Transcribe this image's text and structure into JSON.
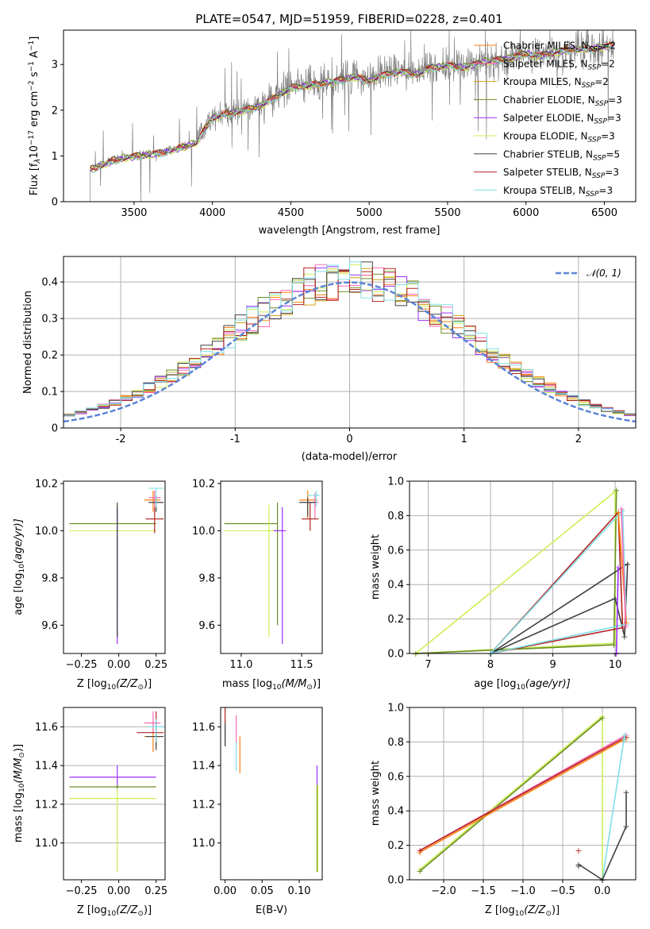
{
  "figure": {
    "title": "PLATE=0547, MJD=51959, FIBERID=0228, z=0.401"
  },
  "models": [
    {
      "name": "Chabrier MILES, N$_{SSP}$=2",
      "label_main": "Chabrier MILES, N",
      "label_sub": "SSP",
      "label_tail": "=2",
      "color": "#ff7f0e"
    },
    {
      "name": "Salpeter MILES, N_SSP=2",
      "label_main": "Salpeter MILES, N",
      "label_sub": "SSP",
      "label_tail": "=2",
      "color": "#ff69b4"
    },
    {
      "name": "Kroupa MILES, N_SSP=2",
      "label_main": "Kroupa MILES, N",
      "label_sub": "SSP",
      "label_tail": "=2",
      "color": "#d4a017"
    },
    {
      "name": "Chabrier ELODIE, N_SSP=3",
      "label_main": "Chabrier ELODIE, N",
      "label_sub": "SSP",
      "label_tail": "=3",
      "color": "#6b8e23"
    },
    {
      "name": "Salpeter ELODIE, N_SSP=3",
      "label_main": "Salpeter ELODIE, N",
      "label_sub": "SSP",
      "label_tail": "=3",
      "color": "#9b30ff"
    },
    {
      "name": "Kroupa ELODIE, N_SSP=3",
      "label_main": "Kroupa ELODIE, N",
      "label_sub": "SSP",
      "label_tail": "=3",
      "color": "#ccee55"
    },
    {
      "name": "Chabrier STELIB, N_SSP=5",
      "label_main": "Chabrier STELIB, N",
      "label_sub": "SSP",
      "label_tail": "=5",
      "color": "#404040"
    },
    {
      "name": "Salpeter STELIB, N_SSP=3",
      "label_main": "Salpeter STELIB, N",
      "label_sub": "SSP",
      "label_tail": "=3",
      "color": "#b22222"
    },
    {
      "name": "Kroupa STELIB, N_SSP=3",
      "label_main": "Kroupa STELIB, N",
      "label_sub": "SSP",
      "label_tail": "=3",
      "color": "#7fdfe8"
    }
  ],
  "chart_data": [
    {
      "id": "spectrum",
      "type": "line",
      "xlabel": "wavelength [Angstrom, rest frame]",
      "ylabel": "Flux [f$_\\lambda$10$^{-17}$ erg cm$^{-2}$ s$^{-1}$ A$^{-1}$]",
      "ylabel_parts": {
        "a": "Flux [f",
        "b": "λ",
        "c": "10",
        "d": "−17",
        "e": " erg cm",
        "f": "−2",
        "g": " s",
        "h": "−1",
        "i": " A",
        "j": "−1",
        "k": "]"
      },
      "xlim": [
        3050,
        6700
      ],
      "ylim": [
        0,
        3.75
      ],
      "xticks": [
        3500,
        4000,
        4500,
        5000,
        5500,
        6000,
        6500
      ],
      "yticks": [
        0,
        1,
        2,
        3
      ],
      "data_color": "#808080",
      "model_x": [
        3220,
        3300,
        3400,
        3500,
        3600,
        3700,
        3800,
        3900,
        3950,
        4000,
        4100,
        4200,
        4300,
        4400,
        4500,
        4600,
        4700,
        4800,
        4900,
        5000,
        5100,
        5200,
        5300,
        5400,
        5500,
        5600,
        5700,
        5800,
        5900,
        6000,
        6100,
        6200,
        6300,
        6400,
        6500,
        6560
      ],
      "model_y": [
        0.72,
        0.82,
        0.95,
        1.0,
        1.05,
        1.1,
        1.2,
        1.3,
        1.6,
        1.85,
        1.95,
        2.0,
        2.1,
        2.3,
        2.5,
        2.55,
        2.6,
        2.65,
        2.75,
        2.65,
        2.8,
        2.85,
        2.8,
        2.95,
        3.0,
        2.95,
        3.05,
        3.1,
        3.15,
        3.25,
        3.2,
        3.3,
        3.35,
        3.35,
        3.4,
        3.45
      ],
      "legend": "top-right"
    },
    {
      "id": "residuals",
      "type": "histogram",
      "xlabel": "(data-model)/error",
      "ylabel": "Normed distribution",
      "xlim": [
        -2.5,
        2.5
      ],
      "ylim": [
        0,
        0.47
      ],
      "xticks": [
        -2,
        -1,
        0,
        1,
        2
      ],
      "yticks": [
        0.0,
        0.1,
        0.2,
        0.3,
        0.4
      ],
      "grid": true,
      "legend": "top-right",
      "gaussian_label": "𝒩(0, 1)",
      "gaussian_color": "#5b84d6",
      "bin_edges_start": -2.5,
      "bin_width": 0.1,
      "bin_count": 50
    },
    {
      "id": "age-vs-Z",
      "type": "errorbar",
      "xlabel_main": "Z [log",
      "xlabel_sub": "10",
      "xlabel_tail": "(Z/Z",
      "xlabel_sun": "⊙",
      "xlabel_end": ")]",
      "ylabel_main": "age  [log",
      "ylabel_sub": "10",
      "ylabel_tail": "(age/yr)]",
      "xlim": [
        -0.37,
        0.31
      ],
      "ylim": [
        9.48,
        10.21
      ],
      "xticks": [
        -0.25,
        0.0,
        0.25
      ],
      "xticklabels": [
        "−0.25",
        "0.00",
        "0.25"
      ],
      "yticks": [
        9.6,
        9.8,
        10.0,
        10.2
      ],
      "yticklabels": [
        "9.6",
        "9.8",
        "10.0",
        "10.2"
      ]
    },
    {
      "id": "age-vs-mass",
      "type": "errorbar",
      "xlabel_main": "mass [log",
      "xlabel_sub": "10",
      "xlabel_tail": "(M/M",
      "xlabel_sun": "⊙",
      "xlabel_end": ")]",
      "xlim": [
        10.83,
        11.67
      ],
      "ylim": [
        9.48,
        10.21
      ],
      "xticks": [
        11.0,
        11.5
      ],
      "xticklabels": [
        "11.0",
        "11.5"
      ],
      "yticks": [
        9.6,
        9.8,
        10.0,
        10.2
      ],
      "yticklabels": [
        "9.6",
        "9.8",
        "10.0",
        "10.2"
      ]
    },
    {
      "id": "weight-vs-age",
      "type": "line",
      "xlabel_main": "age  [log",
      "xlabel_sub": "10",
      "xlabel_tail": "(age/yr)]",
      "ylabel": "mass weight",
      "xlim": [
        6.7,
        10.33
      ],
      "ylim": [
        0,
        1.0
      ],
      "xticks": [
        7,
        8,
        9,
        10
      ],
      "yticks": [
        0.0,
        0.2,
        0.4,
        0.6,
        0.8,
        1.0
      ],
      "yticklabels": [
        "0.0",
        "0.2",
        "0.4",
        "0.6",
        "0.8",
        "1.0"
      ],
      "grid": true
    },
    {
      "id": "mass-vs-Z",
      "type": "errorbar",
      "xlabel_main": "Z [log",
      "xlabel_sub": "10",
      "xlabel_tail": "(Z/Z",
      "xlabel_sun": "⊙",
      "xlabel_end": ")]",
      "ylabel_main": "mass [log",
      "ylabel_sub": "10",
      "ylabel_tail": "(M/M",
      "ylabel_sun": "⊙",
      "ylabel_end": ")]",
      "xlim": [
        -0.37,
        0.31
      ],
      "ylim": [
        10.81,
        11.7
      ],
      "xticks": [
        -0.25,
        0.0,
        0.25
      ],
      "xticklabels": [
        "−0.25",
        "0.00",
        "0.25"
      ],
      "yticks": [
        11.0,
        11.2,
        11.4,
        11.6
      ],
      "yticklabels": [
        "11.0",
        "11.2",
        "11.4",
        "11.6"
      ],
      "grid": true
    },
    {
      "id": "mass-vs-EBV",
      "type": "errorbar",
      "xlabel": "E(B-V)",
      "xlim": [
        -0.006,
        0.131
      ],
      "ylim": [
        10.81,
        11.7
      ],
      "xticks": [
        0.0,
        0.05,
        0.1
      ],
      "xticklabels": [
        "0.00",
        "0.05",
        "0.10"
      ],
      "yticks": [
        11.0,
        11.2,
        11.4,
        11.6
      ],
      "yticklabels": [
        "11.0",
        "11.2",
        "11.4",
        "11.6"
      ]
    },
    {
      "id": "weight-vs-Z",
      "type": "line",
      "xlabel_main": "Z [log",
      "xlabel_sub": "10",
      "xlabel_tail": "(Z/Z",
      "xlabel_sun": "⊙",
      "xlabel_end": ")]",
      "ylabel": "mass weight",
      "xlim": [
        -2.43,
        0.42
      ],
      "ylim": [
        0,
        1.0
      ],
      "xticks": [
        -2.0,
        -1.5,
        -1.0,
        -0.5,
        0.0
      ],
      "xticklabels": [
        "−2.0",
        "−1.5",
        "−1.0",
        "−0.5",
        "0.0"
      ],
      "yticks": [
        0.0,
        0.2,
        0.4,
        0.6,
        0.8,
        1.0
      ],
      "yticklabels": [
        "0.0",
        "0.2",
        "0.4",
        "0.6",
        "0.8",
        "1.0"
      ],
      "grid": true
    }
  ]
}
